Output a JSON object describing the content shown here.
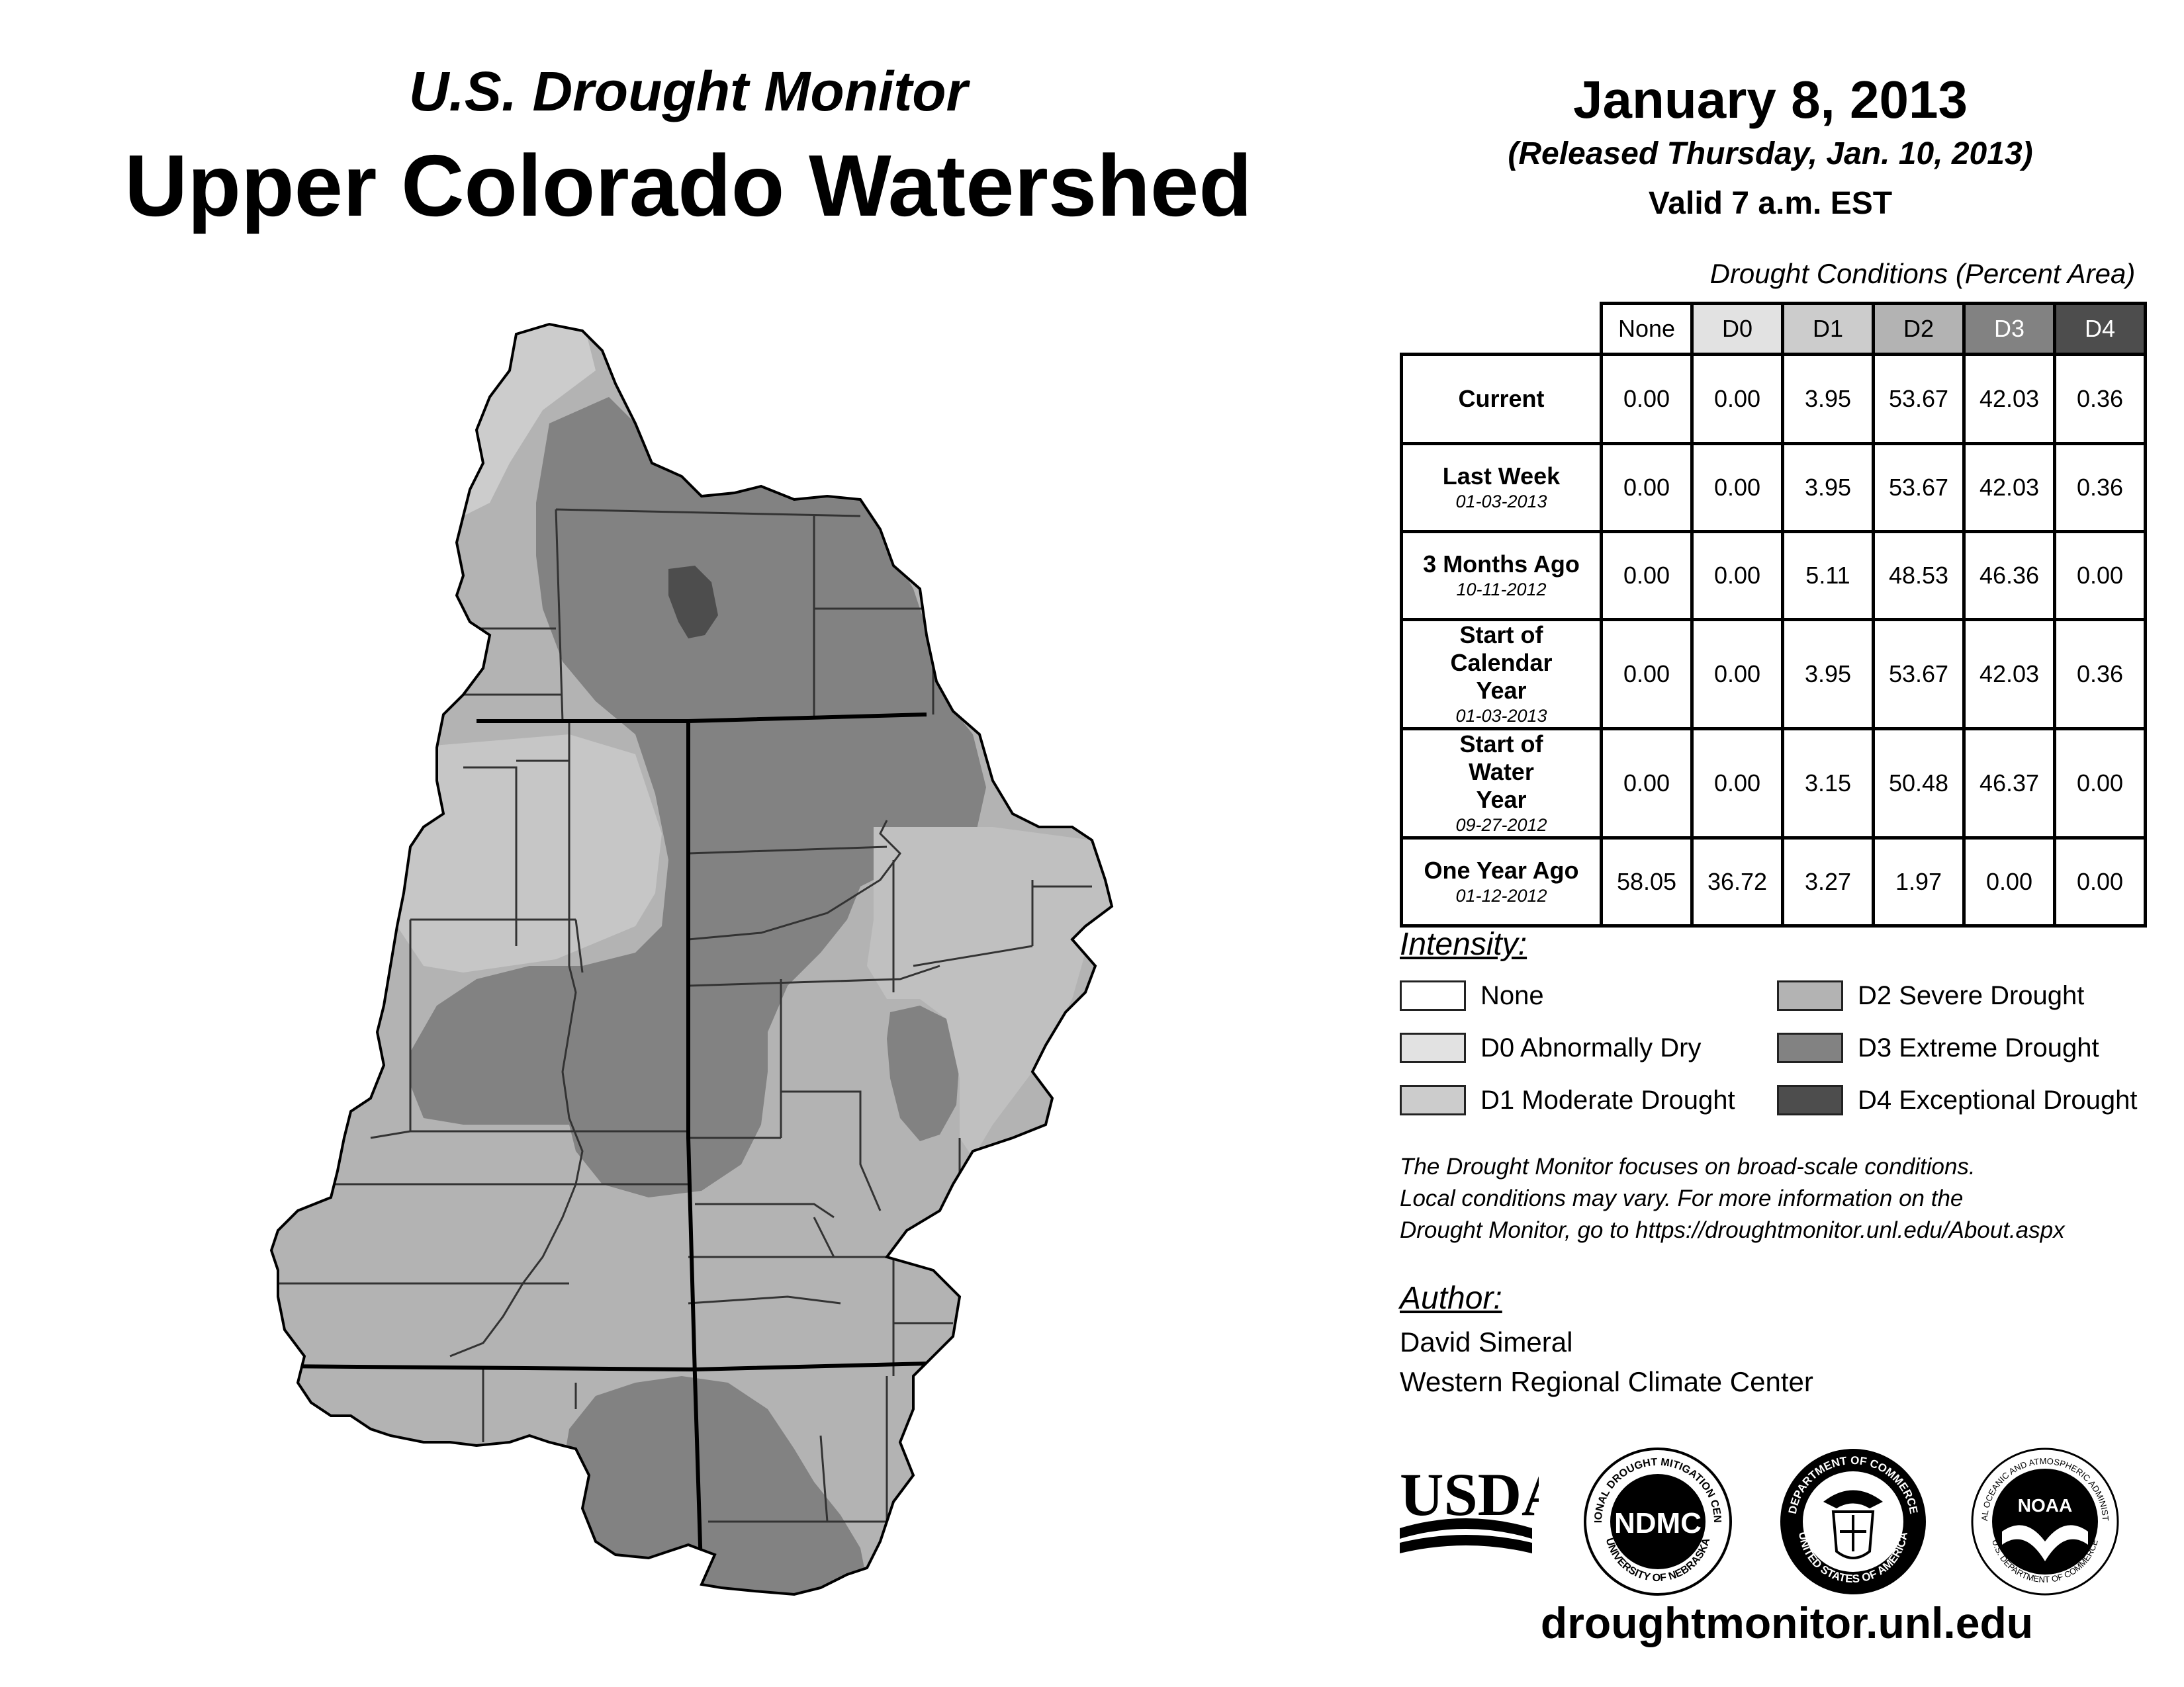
{
  "header": {
    "subtitle": "U.S. Drought Monitor",
    "title": "Upper Colorado Watershed",
    "date": "January 8, 2013",
    "released": "(Released Thursday, Jan. 10, 2013)",
    "valid": "Valid 7 a.m. EST"
  },
  "table": {
    "caption": "Drought Conditions (Percent Area)",
    "columns": [
      "None",
      "D0",
      "D1",
      "D2",
      "D3",
      "D4"
    ],
    "rows": [
      {
        "label": "Current",
        "date": "",
        "values": [
          "0.00",
          "0.00",
          "3.95",
          "53.67",
          "42.03",
          "0.36"
        ]
      },
      {
        "label": "Last Week",
        "date": "01-03-2013",
        "values": [
          "0.00",
          "0.00",
          "3.95",
          "53.67",
          "42.03",
          "0.36"
        ]
      },
      {
        "label": "3 Months Ago",
        "date": "10-11-2012",
        "values": [
          "0.00",
          "0.00",
          "5.11",
          "48.53",
          "46.36",
          "0.00"
        ]
      },
      {
        "label": "Start of Calendar Year",
        "date": "01-03-2013",
        "values": [
          "0.00",
          "0.00",
          "3.95",
          "53.67",
          "42.03",
          "0.36"
        ]
      },
      {
        "label": "Start of Water Year",
        "date": "09-27-2012",
        "values": [
          "0.00",
          "0.00",
          "3.15",
          "50.48",
          "46.37",
          "0.00"
        ]
      },
      {
        "label": "One Year Ago",
        "date": "01-12-2012",
        "values": [
          "58.05",
          "36.72",
          "3.27",
          "1.97",
          "0.00",
          "0.00"
        ]
      }
    ]
  },
  "legend": {
    "title": "Intensity:",
    "items": [
      {
        "label": "None",
        "color": "#ffffff"
      },
      {
        "label": "D0 Abnormally Dry",
        "color": "#e2e2e2"
      },
      {
        "label": "D1 Moderate Drought",
        "color": "#cccccc"
      },
      {
        "label": "D2 Severe Drought",
        "color": "#b3b3b3"
      },
      {
        "label": "D3 Extreme Drought",
        "color": "#828282"
      },
      {
        "label": "D4 Exceptional Drought",
        "color": "#4d4d4d"
      }
    ]
  },
  "disclaimer": {
    "line1": "The Drought Monitor focuses on broad-scale conditions.",
    "line2": "Local conditions may vary. For more information on the",
    "line3": "Drought Monitor, go to https://droughtmonitor.unl.edu/About.aspx"
  },
  "author": {
    "title": "Author:",
    "name": "David Simeral",
    "org": "Western Regional Climate Center"
  },
  "logos": {
    "usda": "USDA",
    "ndmc": "NDMC",
    "ndmc_ring_top": "NATIONAL DROUGHT MITIGATION CENTER",
    "ndmc_ring_bottom": "UNIVERSITY OF NEBRASKA",
    "doc_ring_top": "DEPARTMENT OF COMMERCE",
    "doc_ring_bottom": "UNITED STATES OF AMERICA",
    "noaa": "NOAA",
    "noaa_ring_top": "NATIONAL OCEANIC AND ATMOSPHERIC ADMINISTRATION",
    "noaa_ring_bottom": "U.S. DEPARTMENT OF COMMERCE"
  },
  "footer": {
    "url": "droughtmonitor.unl.edu"
  }
}
